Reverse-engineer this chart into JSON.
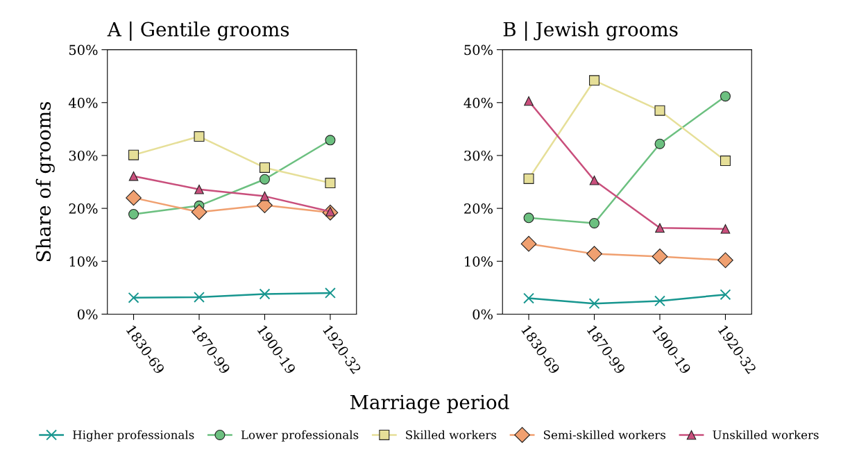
{
  "chart_data": [
    {
      "type": "line",
      "title": "A | Gentile grooms",
      "ylabel": "Share of grooms",
      "xlabel": "Marriage period",
      "categories": [
        "1830-69",
        "1870-99",
        "1900-19",
        "1920-32"
      ],
      "ylim": [
        0,
        50
      ],
      "yticks": [
        {
          "value": 0,
          "label": "0%"
        },
        {
          "value": 10,
          "label": "10%"
        },
        {
          "value": 20,
          "label": "20%"
        },
        {
          "value": 30,
          "label": "30%"
        },
        {
          "value": 40,
          "label": "40%"
        },
        {
          "value": 50,
          "label": "50%"
        }
      ],
      "grid": false,
      "legend": "bottom",
      "series": [
        {
          "name": "Higher professionals",
          "color": "#17968f",
          "marker": "cross",
          "values": [
            3.1,
            3.2,
            3.8,
            4.0
          ]
        },
        {
          "name": "Lower professionals",
          "color": "#6cc080",
          "marker": "circle",
          "values": [
            18.9,
            20.5,
            25.5,
            32.9
          ]
        },
        {
          "name": "Skilled workers",
          "color": "#e6df98",
          "marker": "square",
          "values": [
            30.1,
            33.6,
            27.7,
            24.8
          ]
        },
        {
          "name": "Semi-skilled workers",
          "color": "#f0a070",
          "marker": "diamond",
          "values": [
            22.0,
            19.3,
            20.6,
            19.2
          ]
        },
        {
          "name": "Unskilled workers",
          "color": "#c94f7c",
          "marker": "triangle",
          "values": [
            26.1,
            23.6,
            22.3,
            19.4
          ]
        }
      ]
    },
    {
      "type": "line",
      "title": "B | Jewish grooms",
      "categories": [
        "1830-69",
        "1870-99",
        "1900-19",
        "1920-32"
      ],
      "ylim": [
        0,
        50
      ],
      "yticks": [
        {
          "value": 0,
          "label": "0%"
        },
        {
          "value": 10,
          "label": "10%"
        },
        {
          "value": 20,
          "label": "20%"
        },
        {
          "value": 30,
          "label": "30%"
        },
        {
          "value": 40,
          "label": "40%"
        },
        {
          "value": 50,
          "label": "50%"
        }
      ],
      "grid": false,
      "series": [
        {
          "color": "#17968f",
          "marker": "cross",
          "values": [
            3.0,
            2.0,
            2.5,
            3.7
          ]
        },
        {
          "color": "#6cc080",
          "marker": "circle",
          "values": [
            18.2,
            17.2,
            32.2,
            41.2
          ]
        },
        {
          "color": "#e6df98",
          "marker": "square",
          "values": [
            25.6,
            44.2,
            38.5,
            29.0
          ]
        },
        {
          "color": "#f0a070",
          "marker": "diamond",
          "values": [
            13.3,
            11.4,
            10.9,
            10.2
          ]
        },
        {
          "color": "#c94f7c",
          "marker": "triangle",
          "values": [
            40.3,
            25.3,
            16.3,
            16.1
          ]
        }
      ]
    }
  ]
}
